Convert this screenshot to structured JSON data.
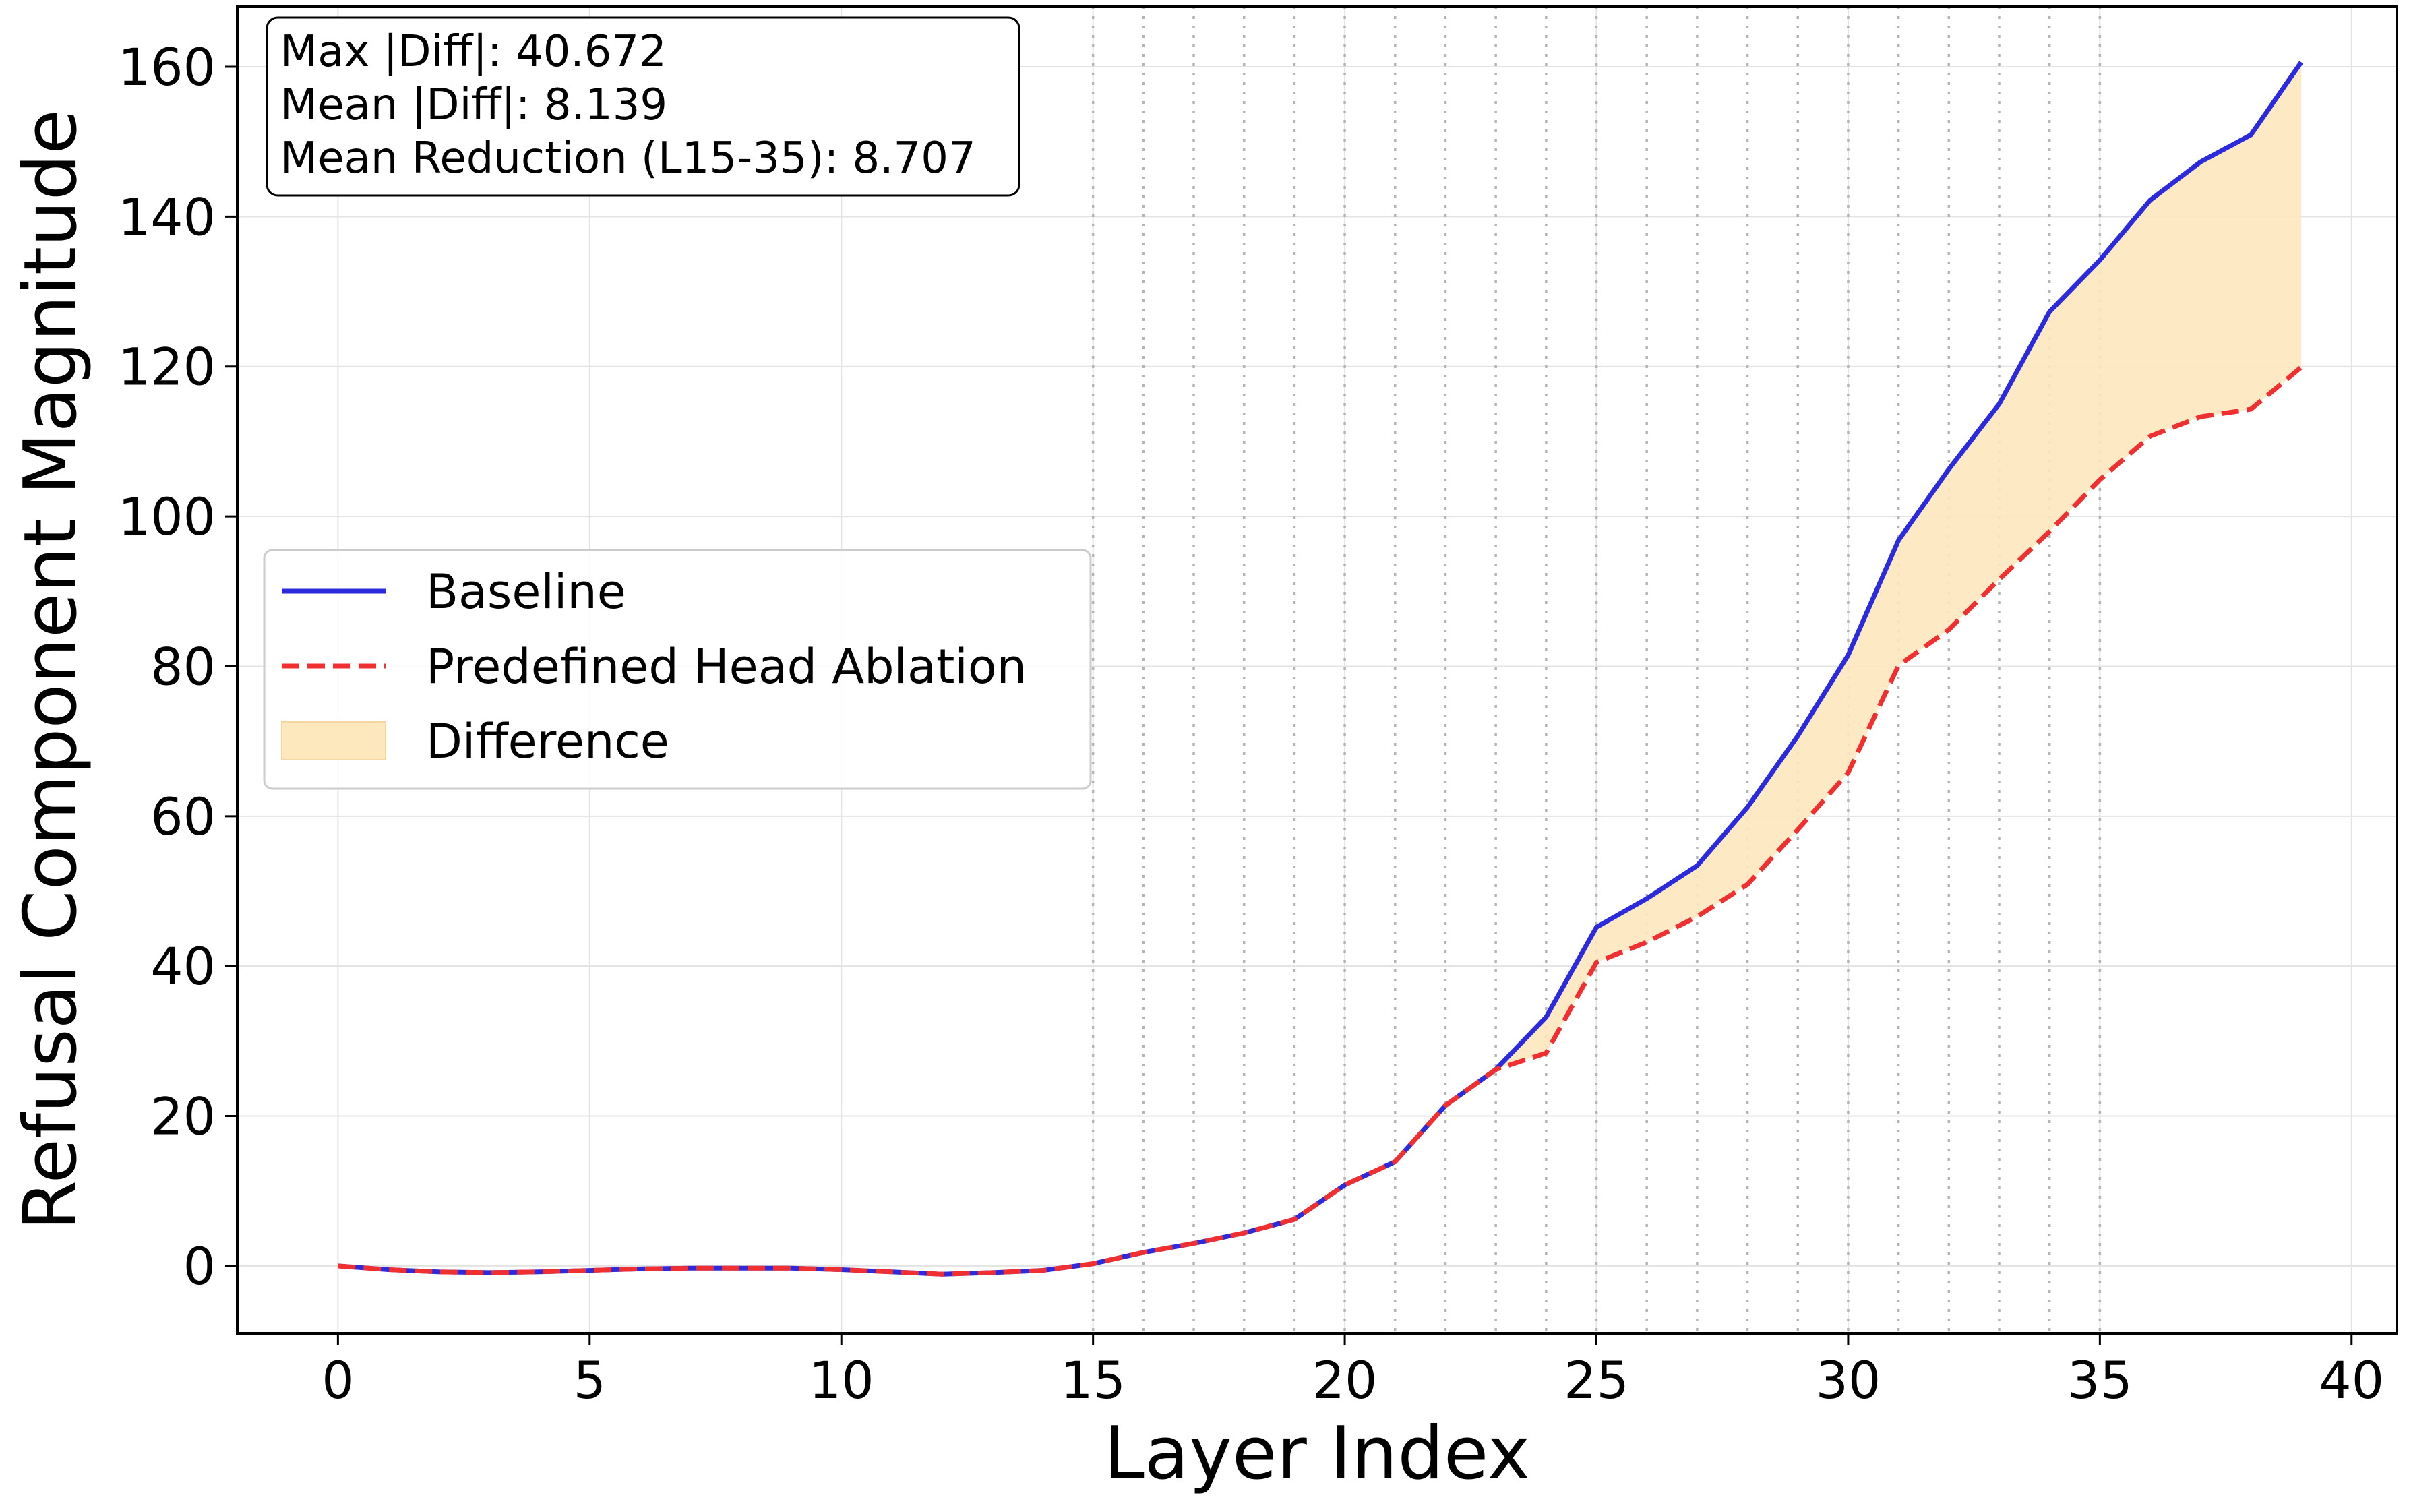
{
  "chart_data": {
    "type": "line",
    "xlabel": "Layer Index",
    "ylabel": "Refusal Component Magnitude",
    "xlim": [
      -2,
      40.9
    ],
    "ylim": [
      -9,
      168
    ],
    "grid": true,
    "xticks": [
      0,
      5,
      10,
      15,
      20,
      25,
      30,
      35,
      40
    ],
    "yticks": [
      0,
      20,
      40,
      60,
      80,
      100,
      120,
      140,
      160
    ],
    "x": [
      0,
      1,
      2,
      3,
      4,
      5,
      6,
      7,
      8,
      9,
      10,
      11,
      12,
      13,
      14,
      15,
      16,
      17,
      18,
      19,
      20,
      21,
      22,
      23,
      24,
      25,
      26,
      27,
      28,
      29,
      30,
      31,
      32,
      33,
      34,
      35,
      36,
      37,
      38,
      39
    ],
    "series": [
      {
        "name": "Baseline",
        "color": "#2b2bdd",
        "style": "solid",
        "values": [
          0.0,
          -0.5,
          -0.8,
          -0.9,
          -0.8,
          -0.6,
          -0.4,
          -0.3,
          -0.3,
          -0.3,
          -0.5,
          -0.8,
          -1.1,
          -0.9,
          -0.6,
          0.3,
          1.8,
          3.0,
          4.4,
          6.2,
          10.8,
          13.9,
          21.4,
          26.2,
          33.2,
          45.2,
          49.0,
          53.4,
          61.2,
          70.7,
          81.5,
          96.8,
          106.3,
          115.0,
          127.3,
          134.2,
          142.2,
          147.3,
          150.9,
          160.6
        ]
      },
      {
        "name": "Predefined Head Ablation",
        "color": "#f03030",
        "style": "dashed",
        "values": [
          0.0,
          -0.5,
          -0.8,
          -0.9,
          -0.8,
          -0.6,
          -0.4,
          -0.3,
          -0.3,
          -0.3,
          -0.5,
          -0.8,
          -1.1,
          -0.9,
          -0.6,
          0.3,
          1.8,
          3.0,
          4.4,
          6.2,
          10.8,
          13.9,
          21.4,
          26.2,
          28.4,
          40.5,
          43.2,
          46.6,
          50.9,
          58.2,
          65.8,
          80.1,
          84.9,
          91.6,
          98.0,
          104.9,
          110.7,
          113.3,
          114.3,
          119.9
        ]
      }
    ],
    "fill_between": {
      "name": "Difference",
      "color": "#fde7bd",
      "between": [
        "Baseline",
        "Predefined Head Ablation"
      ]
    },
    "legend": {
      "placement": "center-left",
      "entries": [
        "Baseline",
        "Predefined Head Ablation",
        "Difference"
      ]
    },
    "vertical_dotted_lines": [
      15,
      16,
      17,
      18,
      19,
      20,
      21,
      22,
      23,
      24,
      25,
      26,
      27,
      28,
      29,
      30,
      31,
      32,
      33,
      34,
      35
    ],
    "stats_box": {
      "lines": [
        "Max |Diff|: 40.672",
        "Mean |Diff|: 8.139",
        "Mean Reduction (L15-35): 8.707"
      ]
    }
  }
}
